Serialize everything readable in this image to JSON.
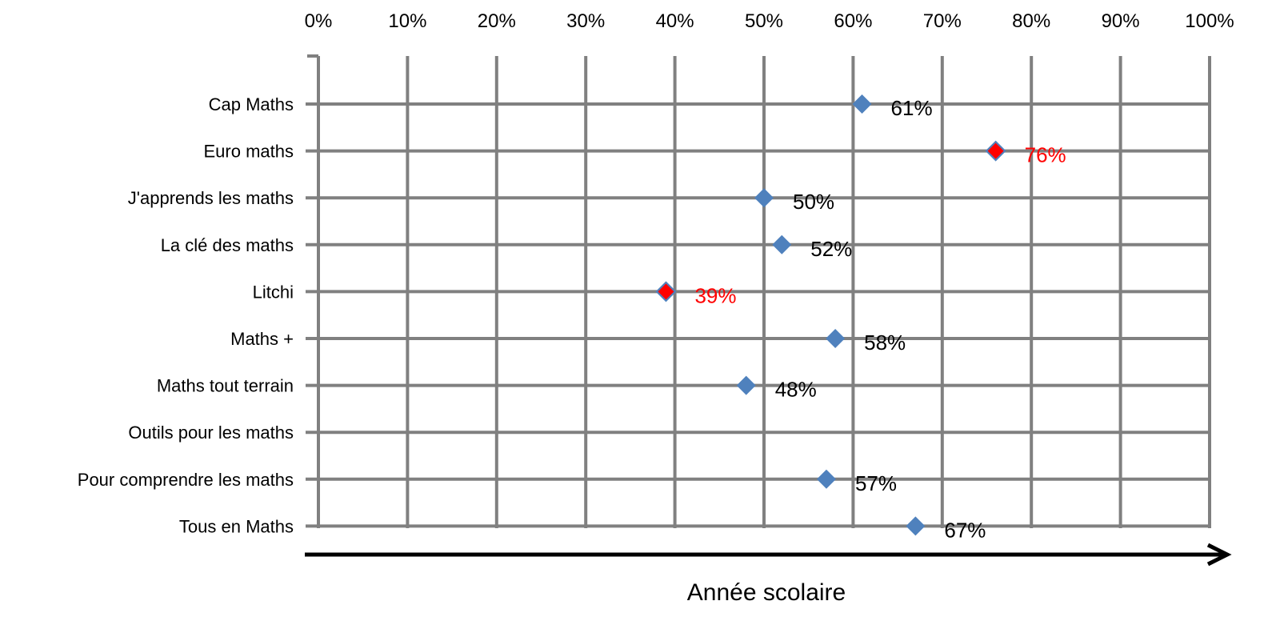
{
  "chart_data": {
    "type": "scatter",
    "orientation": "horizontal",
    "categories": [
      "Cap Maths",
      "Euro maths",
      "J'apprends les maths",
      "La clé des maths",
      "Litchi",
      "Maths +",
      "Maths tout terrain",
      "Outils pour les maths",
      "Pour comprendre les maths",
      "Tous en Maths"
    ],
    "values": [
      61,
      76,
      50,
      52,
      39,
      58,
      48,
      null,
      57,
      67
    ],
    "data_labels": [
      "61%",
      "76%",
      "50%",
      "52%",
      "39%",
      "58%",
      "48%",
      "",
      "57%",
      "67%"
    ],
    "highlight": [
      false,
      true,
      false,
      false,
      true,
      false,
      false,
      false,
      false,
      false
    ],
    "x_ticks": [
      "0%",
      "10%",
      "20%",
      "30%",
      "40%",
      "50%",
      "60%",
      "70%",
      "80%",
      "90%",
      "100%"
    ],
    "xlim": [
      0,
      100
    ],
    "xlabel": "Année scolaire",
    "title": "",
    "grid": true,
    "colors": {
      "marker": "#4f81bd",
      "highlight_marker": "#ff0000",
      "highlight_label": "#ff0000",
      "label": "#000000",
      "grid": "#808080",
      "axis_arrow": "#000000"
    }
  }
}
